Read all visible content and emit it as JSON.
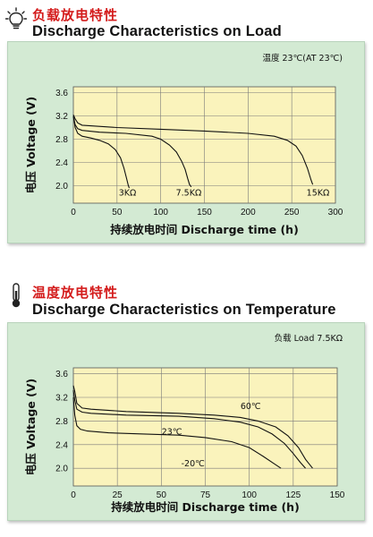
{
  "sections": [
    {
      "title_cn": "负载放电特性",
      "title_en": "Discharge Characteristics on Load",
      "icon": "lightbulb-icon"
    },
    {
      "title_cn": "温度放电特性",
      "title_en": "Discharge Characteristics on Temperature",
      "icon": "thermometer-icon"
    }
  ],
  "chart_data": [
    {
      "type": "line",
      "title": "",
      "condition": "温度 23℃(AT 23℃)",
      "xlabel": "持续放电时间   Discharge time (h)",
      "ylabel": "电压  Voltage (V)",
      "xlim": [
        0,
        300
      ],
      "ylim": [
        1.7,
        3.7
      ],
      "xticks": [
        0,
        50,
        100,
        150,
        200,
        250,
        300
      ],
      "yticks": [
        2.0,
        2.4,
        2.8,
        3.2,
        3.6
      ],
      "grid": true,
      "plot_bg": "#faf3bc",
      "panel_bg": "#d3ead3",
      "series": [
        {
          "name": "3KΩ",
          "x": [
            0,
            2,
            5,
            10,
            20,
            30,
            40,
            48,
            54,
            58,
            61,
            63,
            64
          ],
          "y": [
            3.2,
            3.0,
            2.9,
            2.85,
            2.82,
            2.78,
            2.72,
            2.62,
            2.48,
            2.3,
            2.12,
            2.0,
            1.96
          ]
        },
        {
          "name": "7.5KΩ",
          "x": [
            0,
            2,
            5,
            10,
            30,
            60,
            90,
            100,
            110,
            118,
            124,
            128,
            131,
            133,
            135
          ],
          "y": [
            3.2,
            3.05,
            2.98,
            2.95,
            2.92,
            2.9,
            2.85,
            2.8,
            2.7,
            2.58,
            2.42,
            2.28,
            2.12,
            2.02,
            1.98
          ]
        },
        {
          "name": "15KΩ",
          "x": [
            0,
            2,
            5,
            10,
            50,
            100,
            150,
            200,
            230,
            245,
            255,
            262,
            268,
            272,
            274
          ],
          "y": [
            3.22,
            3.15,
            3.08,
            3.04,
            3.0,
            2.97,
            2.94,
            2.9,
            2.85,
            2.78,
            2.68,
            2.52,
            2.3,
            2.1,
            2.02
          ]
        }
      ],
      "annotations": [
        "3KΩ",
        "7.5KΩ",
        "15KΩ"
      ]
    },
    {
      "type": "line",
      "title": "",
      "condition": "负载   Load 7.5KΩ",
      "xlabel": "持续放电时间   Discharge time (h)",
      "ylabel": "电压  Voltage (V)",
      "xlim": [
        0,
        150
      ],
      "ylim": [
        1.7,
        3.7
      ],
      "xticks": [
        0,
        25,
        50,
        75,
        100,
        125,
        150
      ],
      "yticks": [
        2.0,
        2.4,
        2.8,
        3.2,
        3.6
      ],
      "grid": true,
      "plot_bg": "#faf3bc",
      "panel_bg": "#d3ead3",
      "series": [
        {
          "name": "60℃",
          "x": [
            0,
            0.8,
            2,
            5,
            10,
            30,
            60,
            80,
            95,
            105,
            115,
            122,
            128,
            132,
            136
          ],
          "y": [
            3.4,
            3.3,
            3.1,
            3.02,
            3.0,
            2.96,
            2.93,
            2.9,
            2.86,
            2.8,
            2.7,
            2.55,
            2.35,
            2.15,
            2.0
          ]
        },
        {
          "name": "23℃",
          "x": [
            0,
            0.8,
            2,
            5,
            10,
            30,
            60,
            80,
            95,
            105,
            113,
            120,
            125,
            129,
            132
          ],
          "y": [
            3.32,
            3.15,
            3.0,
            2.95,
            2.93,
            2.9,
            2.88,
            2.84,
            2.78,
            2.7,
            2.58,
            2.42,
            2.25,
            2.1,
            2.0
          ]
        },
        {
          "name": "-20℃",
          "x": [
            0,
            0.8,
            2,
            4,
            8,
            20,
            40,
            60,
            75,
            90,
            100,
            108,
            114,
            118
          ],
          "y": [
            3.2,
            2.9,
            2.72,
            2.66,
            2.63,
            2.6,
            2.58,
            2.56,
            2.52,
            2.45,
            2.35,
            2.2,
            2.08,
            2.0
          ]
        }
      ],
      "annotations": [
        "60℃",
        "23℃",
        "-20℃"
      ]
    }
  ]
}
